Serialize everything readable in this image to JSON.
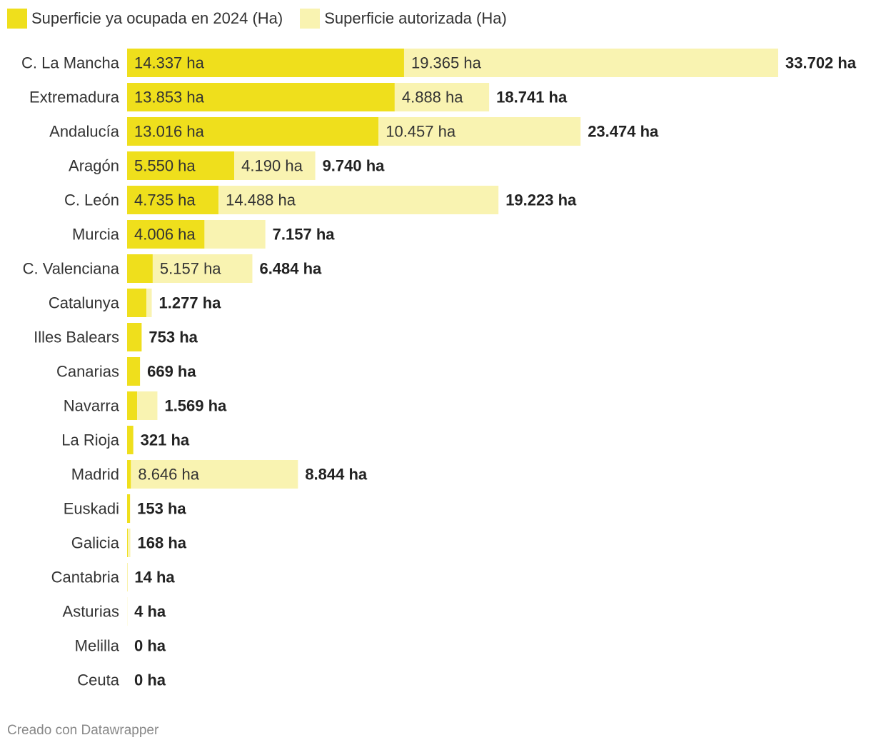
{
  "colors": {
    "occupied": "#efdf1c",
    "authorized": "#f9f3b1",
    "text": "#333333",
    "total": "#222222"
  },
  "legend": {
    "occupied_label": "Superficie ya ocupada en 2024 (Ha)",
    "authorized_label": "Superficie autorizada (Ha)"
  },
  "footer": {
    "credit": "Creado con Datawrapper"
  },
  "chart_data": {
    "type": "bar",
    "orientation": "horizontal",
    "stacked": true,
    "unit_suffix": " ha",
    "xlim": [
      0,
      33702
    ],
    "categories": [
      "C. La Mancha",
      "Extremadura",
      "Andalucía",
      "Aragón",
      "C. León",
      "Murcia",
      "C. Valenciana",
      "Catalunya",
      "Illes Balears",
      "Canarias",
      "Navarra",
      "La Rioja",
      "Madrid",
      "Euskadi",
      "Galicia",
      "Cantabria",
      "Asturias",
      "Melilla",
      "Ceuta"
    ],
    "series": [
      {
        "name": "Superficie ya ocupada en 2024 (Ha)",
        "values": [
          14337,
          13853,
          13016,
          5550,
          4735,
          4006,
          1327,
          1000,
          753,
          669,
          520,
          321,
          198,
          153,
          40,
          14,
          4,
          0,
          0
        ]
      },
      {
        "name": "Superficie autorizada (Ha)",
        "values": [
          19365,
          4888,
          10457,
          4190,
          14488,
          3151,
          5157,
          277,
          0,
          0,
          1049,
          0,
          8646,
          0,
          128,
          0,
          0,
          0,
          0
        ]
      }
    ],
    "segment_labels": [
      [
        "14.337 ha",
        "19.365 ha"
      ],
      [
        "13.853 ha",
        "4.888 ha"
      ],
      [
        "13.016 ha",
        "10.457 ha"
      ],
      [
        "5.550 ha",
        "4.190 ha"
      ],
      [
        "4.735 ha",
        "14.488 ha"
      ],
      [
        "4.006 ha",
        ""
      ],
      [
        "",
        "5.157 ha"
      ],
      [
        "",
        ""
      ],
      [
        "",
        ""
      ],
      [
        "",
        ""
      ],
      [
        "",
        ""
      ],
      [
        "",
        ""
      ],
      [
        "",
        "8.646 ha"
      ],
      [
        "",
        ""
      ],
      [
        "",
        ""
      ],
      [
        "",
        ""
      ],
      [
        "",
        ""
      ],
      [
        "",
        ""
      ],
      [
        "",
        ""
      ]
    ],
    "total_labels": [
      "33.702 ha",
      "18.741 ha",
      "23.474 ha",
      "9.740 ha",
      "19.223 ha",
      "7.157 ha",
      "6.484 ha",
      "1.277 ha",
      "753 ha",
      "669 ha",
      "1.569 ha",
      "321 ha",
      "8.844 ha",
      "153 ha",
      "168 ha",
      "14 ha",
      "4 ha",
      "0 ha",
      "0 ha"
    ]
  }
}
